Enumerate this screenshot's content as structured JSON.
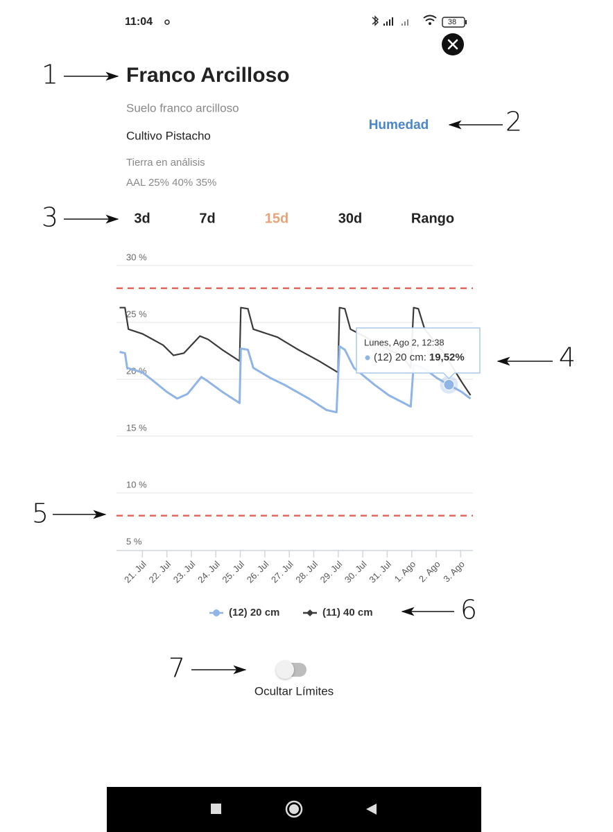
{
  "status_bar": {
    "time": "11:04",
    "battery": "38"
  },
  "header": {
    "title": "Franco Arcilloso",
    "subtitle": "Suelo franco arcilloso",
    "crop": "Cultivo Pistacho",
    "soil_note": "Tierra en análisis",
    "texture": "AAL 25% 40% 35%",
    "variable": "Humedad"
  },
  "tabs": {
    "items": [
      "3d",
      "7d",
      "15d",
      "30d",
      "Rango"
    ],
    "selected": 2
  },
  "chart_data": {
    "type": "line",
    "ylim": [
      5,
      30
    ],
    "yticks": [
      {
        "value": 30,
        "label": "30 %"
      },
      {
        "value": 25,
        "label": "25 %"
      },
      {
        "value": 20,
        "label": "20 %"
      },
      {
        "value": 15,
        "label": "15 %"
      },
      {
        "value": 10,
        "label": "10 %"
      },
      {
        "value": 5,
        "label": "5 %"
      }
    ],
    "xlim": [
      20,
      34.5
    ],
    "xticks": [
      {
        "value": 21,
        "label": "21. Jul"
      },
      {
        "value": 22,
        "label": "22. Jul"
      },
      {
        "value": 23,
        "label": "23. Jul"
      },
      {
        "value": 24,
        "label": "24. Jul"
      },
      {
        "value": 25,
        "label": "25. Jul"
      },
      {
        "value": 26,
        "label": "26. Jul"
      },
      {
        "value": 27,
        "label": "27. Jul"
      },
      {
        "value": 28,
        "label": "28. Jul"
      },
      {
        "value": 29,
        "label": "29. Jul"
      },
      {
        "value": 30,
        "label": "30. Jul"
      },
      {
        "value": 31,
        "label": "31. Jul"
      },
      {
        "value": 32,
        "label": "1. Ago"
      },
      {
        "value": 33,
        "label": "2. Ago"
      },
      {
        "value": 34,
        "label": "3. Ago"
      }
    ],
    "grid": true,
    "limits": [
      28,
      8
    ],
    "limit_color": "#e5675a",
    "series": [
      {
        "name": "(12) 20 cm",
        "color": "#8fb4e6",
        "marker": "circle",
        "x": [
          20.07,
          20.29,
          20.38,
          21,
          21.42,
          21.99,
          22.42,
          22.84,
          23.41,
          23.69,
          24.26,
          24.97,
          25.02,
          25.31,
          25.53,
          26.24,
          26.81,
          27.8,
          28.51,
          28.93,
          29.05,
          29.27,
          29.64,
          30.49,
          31.06,
          31.96,
          32.08,
          32.47,
          33.04,
          33.52,
          34.03,
          34.4
        ],
        "values": [
          22.4,
          22.3,
          21.0,
          20.6,
          19.9,
          18.9,
          18.3,
          18.7,
          20.2,
          19.8,
          18.9,
          17.9,
          22.7,
          22.6,
          21.0,
          20.1,
          19.5,
          18.3,
          17.3,
          17.1,
          22.9,
          22.6,
          21.0,
          19.5,
          18.6,
          17.6,
          21.3,
          21.0,
          20.1,
          19.5,
          18.9,
          18.3
        ]
      },
      {
        "name": "(11) 40 cm",
        "color": "#3a3a3a",
        "marker": "diamond",
        "x": [
          20.07,
          20.29,
          20.43,
          21,
          21.85,
          22.27,
          22.7,
          23.35,
          23.69,
          24.26,
          24.97,
          25.02,
          25.31,
          25.53,
          26.52,
          27.37,
          28.22,
          28.99,
          29.05,
          29.27,
          29.5,
          30.21,
          31.06,
          31.62,
          31.96,
          32.08,
          32.27,
          32.53,
          33.32,
          34.03,
          34.4
        ],
        "values": [
          26.3,
          26.3,
          24.4,
          24.0,
          23.0,
          22.1,
          22.3,
          23.8,
          23.5,
          22.6,
          21.6,
          26.3,
          26.2,
          24.4,
          23.7,
          22.6,
          21.6,
          20.6,
          26.3,
          26.2,
          24.4,
          23.6,
          22.6,
          22.0,
          21.0,
          26.3,
          26.2,
          24.4,
          22.3,
          19.8,
          18.6
        ]
      }
    ],
    "tooltip": {
      "title": "Lunes, Ago 2, 12:38",
      "label": "(12) 20 cm:",
      "x": 33.52,
      "value": 19.52,
      "value_label": "19,52%"
    }
  },
  "toggle": {
    "label": "Ocultar Límites",
    "on": false
  },
  "callouts": [
    "1",
    "2",
    "3",
    "4",
    "5",
    "6",
    "7"
  ]
}
